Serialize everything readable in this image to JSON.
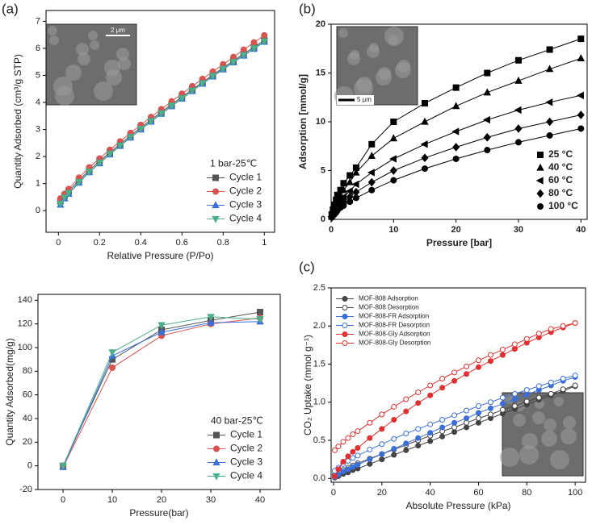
{
  "chart_data": [
    {
      "type": "line",
      "label": "(a)",
      "xlabel": "Relative Pressure (P/Po)",
      "ylabel": "Quantity Adsorbed (cm³/g STP)",
      "inset_label": "2 μm",
      "legend_title": "1 bar-25℃",
      "legend": "lower right",
      "xlim": [
        -0.06,
        1.05
      ],
      "xticks": [
        0,
        0.2,
        0.4,
        0.6,
        0.8,
        1
      ],
      "ylim": [
        -0.8,
        7.4
      ],
      "yticks": [
        0,
        1,
        2,
        3,
        4,
        5,
        6,
        7
      ],
      "x": [
        0.01,
        0.03,
        0.05,
        0.1,
        0.15,
        0.2,
        0.25,
        0.3,
        0.35,
        0.4,
        0.45,
        0.5,
        0.55,
        0.6,
        0.65,
        0.7,
        0.75,
        0.8,
        0.85,
        0.9,
        0.95,
        1.0
      ],
      "series": [
        {
          "name": "Cycle 1",
          "color": "#555555",
          "marker": "square",
          "values": [
            0.35,
            0.55,
            0.72,
            1.12,
            1.5,
            1.83,
            2.15,
            2.46,
            2.77,
            3.07,
            3.36,
            3.65,
            3.93,
            4.21,
            4.48,
            4.75,
            5.02,
            5.28,
            5.54,
            5.8,
            6.05,
            6.3
          ]
        },
        {
          "name": "Cycle 2",
          "color": "#d9534f",
          "marker": "circle",
          "values": [
            0.45,
            0.62,
            0.8,
            1.22,
            1.6,
            1.93,
            2.25,
            2.56,
            2.87,
            3.17,
            3.46,
            3.75,
            4.04,
            4.32,
            4.6,
            4.87,
            5.14,
            5.41,
            5.68,
            5.95,
            6.22,
            6.48
          ]
        },
        {
          "name": "Cycle 3",
          "color": "#3a6fd8",
          "marker": "triangle-up",
          "values": [
            0.22,
            0.45,
            0.62,
            1.03,
            1.42,
            1.75,
            2.08,
            2.39,
            2.7,
            3.0,
            3.29,
            3.58,
            3.86,
            4.14,
            4.42,
            4.69,
            4.96,
            5.22,
            5.48,
            5.73,
            5.98,
            6.24
          ]
        },
        {
          "name": "Cycle 4",
          "color": "#4caf8a",
          "marker": "triangle-down",
          "values": [
            0.25,
            0.48,
            0.65,
            1.06,
            1.44,
            1.77,
            2.1,
            2.41,
            2.72,
            3.02,
            3.31,
            3.6,
            3.88,
            4.16,
            4.44,
            4.71,
            4.98,
            5.24,
            5.5,
            5.75,
            6.0,
            6.26
          ]
        }
      ]
    },
    {
      "type": "line",
      "label": "(b)",
      "xlabel": "Pressure [bar]",
      "ylabel": "Adsorption [mmol/g]",
      "inset_label": "5 μm",
      "legend": "lower right",
      "xlim": [
        0,
        41
      ],
      "xticks": [
        0,
        10,
        20,
        30,
        40
      ],
      "ylim": [
        0,
        20
      ],
      "yticks": [
        0,
        5,
        10,
        15,
        20
      ],
      "x": [
        0.1,
        0.3,
        0.5,
        0.8,
        1,
        1.5,
        2,
        3,
        4,
        6.5,
        10,
        15,
        20,
        25,
        30,
        35,
        40
      ],
      "series": [
        {
          "name": "25 °C",
          "color": "#000000",
          "marker": "square",
          "values": [
            0.5,
            1,
            1.5,
            2,
            2.5,
            3,
            3.7,
            4.5,
            5.3,
            7.7,
            10,
            11.9,
            13.5,
            15,
            16.3,
            17.4,
            18.5
          ]
        },
        {
          "name": "40 °C",
          "color": "#000000",
          "marker": "triangle-up",
          "values": [
            0.4,
            0.8,
            1.2,
            1.6,
            2,
            2.5,
            3,
            3.8,
            4.8,
            6.5,
            8.3,
            10,
            11.6,
            13,
            14.2,
            15.4,
            16.5
          ]
        },
        {
          "name": "60 °C",
          "color": "#000000",
          "marker": "triangle-left",
          "values": [
            0.3,
            0.6,
            0.9,
            1.2,
            1.5,
            2,
            2.3,
            2.9,
            3.6,
            4.8,
            6.2,
            7.7,
            9,
            10.2,
            11.2,
            12,
            12.7
          ]
        },
        {
          "name": "80 °C",
          "color": "#000000",
          "marker": "diamond",
          "values": [
            0.2,
            0.5,
            0.7,
            0.9,
            1.1,
            1.5,
            1.8,
            2.3,
            2.8,
            3.8,
            5,
            6.3,
            7.4,
            8.4,
            9.3,
            10,
            10.7
          ]
        },
        {
          "name": "100 °C",
          "color": "#000000",
          "marker": "circle",
          "values": [
            0.2,
            0.4,
            0.5,
            0.7,
            0.9,
            1.2,
            1.4,
            1.8,
            2.2,
            3,
            4,
            5.2,
            6.2,
            7.1,
            7.9,
            8.6,
            9.3
          ]
        }
      ]
    },
    {
      "type": "line",
      "xlabel": "Pressure(bar)",
      "ylabel": "Quantity Adsorbed(mg/g)",
      "legend_title": "40 bar-25℃",
      "legend": "lower right",
      "xlim": [
        -5.1,
        44.1
      ],
      "xticks": [
        0,
        10,
        20,
        30,
        40
      ],
      "ylim": [
        -20,
        145
      ],
      "yticks": [
        -20,
        0,
        20,
        40,
        60,
        80,
        100,
        120,
        140
      ],
      "x": [
        0,
        10,
        20,
        30,
        40
      ],
      "series": [
        {
          "name": "Cycle 1",
          "color": "#555555",
          "marker": "square",
          "values": [
            0,
            90,
            115,
            123,
            130
          ]
        },
        {
          "name": "Cycle 2",
          "color": "#d9534f",
          "marker": "circle",
          "values": [
            -1,
            83,
            110,
            120,
            125
          ]
        },
        {
          "name": "Cycle 3",
          "color": "#3a6fd8",
          "marker": "triangle-up",
          "values": [
            -1,
            93,
            113,
            121,
            122
          ]
        },
        {
          "name": "Cycle 4",
          "color": "#4caf8a",
          "marker": "triangle-down",
          "values": [
            0,
            96,
            119,
            126,
            124
          ]
        }
      ]
    },
    {
      "type": "line",
      "label": "(c)",
      "xlabel": "Absolute Pressure (kPa)",
      "ylabel": "CO₂ Uptake (mmol g⁻¹)",
      "legend": "upper left",
      "xlim": [
        -1,
        104.3
      ],
      "xticks": [
        0,
        20,
        40,
        60,
        80,
        100
      ],
      "ylim": [
        -0.05,
        2.5
      ],
      "yticks": [
        {
          "value": 0,
          "label": "0.0"
        },
        0.5,
        {
          "value": 1,
          "label": "1.0"
        },
        1.5,
        {
          "value": 2,
          "label": "2.0"
        },
        2.5
      ],
      "x": [
        0.5,
        2,
        4,
        6,
        8,
        10,
        15,
        20,
        25,
        30,
        35,
        40,
        45,
        50,
        55,
        60,
        65,
        70,
        75,
        80,
        85,
        90,
        95,
        100
      ],
      "series": [
        {
          "name": "MOF-808 Adsorption",
          "color": "#444444",
          "marker": "circle",
          "filled": true,
          "values": [
            0.01,
            0.03,
            0.06,
            0.08,
            0.11,
            0.13,
            0.19,
            0.25,
            0.31,
            0.37,
            0.43,
            0.49,
            0.55,
            0.61,
            0.67,
            0.73,
            0.79,
            0.85,
            0.91,
            0.97,
            1.03,
            1.09,
            1.15,
            1.21
          ]
        },
        {
          "name": "MOF-808 Desorption",
          "color": "#444444",
          "marker": "circle",
          "filled": false,
          "values": [
            0.05,
            0.08,
            0.11,
            0.14,
            0.17,
            0.2,
            0.26,
            0.32,
            0.38,
            0.44,
            0.5,
            0.56,
            0.62,
            0.67,
            0.73,
            0.79,
            0.84,
            0.9,
            0.95,
            1.01,
            1.06,
            1.11,
            1.17,
            1.22
          ]
        },
        {
          "name": "MOF-808-FR Adsorption",
          "color": "#3a6fd8",
          "marker": "circle",
          "filled": true,
          "values": [
            0.02,
            0.05,
            0.09,
            0.12,
            0.15,
            0.18,
            0.25,
            0.32,
            0.39,
            0.46,
            0.53,
            0.6,
            0.67,
            0.73,
            0.79,
            0.86,
            0.92,
            0.98,
            1.04,
            1.1,
            1.16,
            1.22,
            1.28,
            1.33
          ]
        },
        {
          "name": "MOF-808-FR Desorption",
          "color": "#3a6fd8",
          "marker": "circle",
          "filled": false,
          "values": [
            0.1,
            0.14,
            0.19,
            0.23,
            0.27,
            0.3,
            0.38,
            0.45,
            0.52,
            0.59,
            0.65,
            0.71,
            0.77,
            0.83,
            0.89,
            0.95,
            1.0,
            1.06,
            1.11,
            1.16,
            1.21,
            1.26,
            1.31,
            1.35
          ]
        },
        {
          "name": "MOF-808-Gly Adsorption",
          "color": "#e03030",
          "marker": "circle",
          "filled": true,
          "values": [
            0.03,
            0.12,
            0.22,
            0.29,
            0.35,
            0.4,
            0.53,
            0.65,
            0.77,
            0.88,
            0.99,
            1.09,
            1.19,
            1.28,
            1.37,
            1.46,
            1.54,
            1.62,
            1.7,
            1.78,
            1.85,
            1.92,
            1.98,
            2.04
          ]
        },
        {
          "name": "MOF-808-Gly Desorption",
          "color": "#e03030",
          "marker": "circle",
          "filled": false,
          "values": [
            0.37,
            0.42,
            0.48,
            0.53,
            0.58,
            0.62,
            0.73,
            0.84,
            0.94,
            1.04,
            1.13,
            1.22,
            1.31,
            1.39,
            1.47,
            1.55,
            1.62,
            1.69,
            1.76,
            1.83,
            1.9,
            1.96,
            2.0,
            2.04
          ]
        }
      ]
    }
  ]
}
